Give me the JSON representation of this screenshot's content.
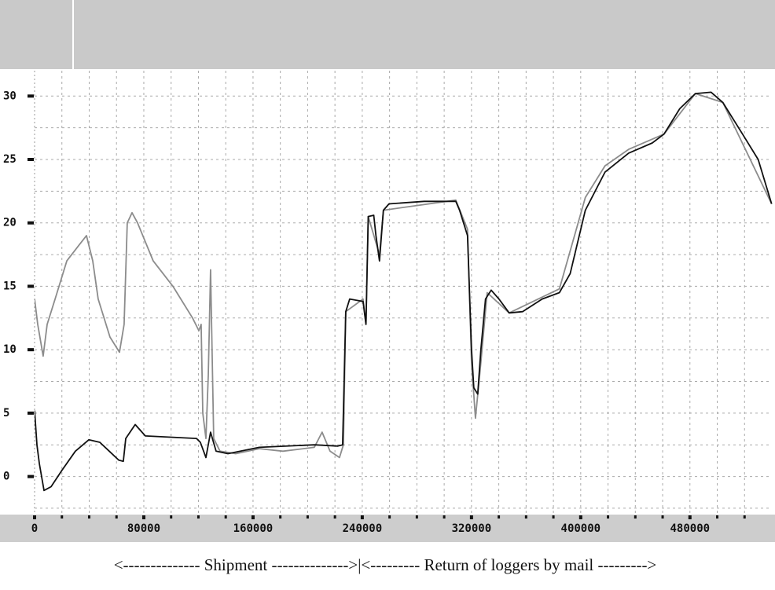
{
  "chart_data": {
    "type": "line",
    "annotation": "<-------------- Shipment -------------->|<--------- Return of loggers by mail --------->",
    "xlim": [
      0,
      540000
    ],
    "ylim": [
      -3,
      32
    ],
    "xticks": [
      0,
      80000,
      160000,
      240000,
      320000,
      400000,
      480000
    ],
    "yticks": [
      0,
      5,
      10,
      15,
      20,
      25,
      30
    ],
    "xgrid": [
      20000,
      40000,
      60000,
      80000,
      100000,
      120000,
      140000,
      160000,
      180000,
      200000,
      220000,
      240000,
      260000,
      280000,
      300000,
      320000,
      340000,
      360000,
      380000,
      400000,
      420000,
      440000,
      460000,
      480000,
      500000,
      520000
    ],
    "ygrid": [
      -2.5,
      0,
      2.5,
      5,
      7.5,
      10,
      12.5,
      15,
      17.5,
      20,
      22.5,
      25,
      27.5,
      30
    ],
    "grid": true,
    "series": [
      {
        "color": "#8c8c8c",
        "x": [
          0,
          2300,
          6300,
          9200,
          15000,
          23600,
          32200,
          38000,
          42600,
          46600,
          55200,
          62200,
          65600,
          67900,
          71400,
          75400,
          86900,
          101300,
          115700,
          120300,
          122000,
          123200,
          125500,
          127200,
          128900,
          131200,
          135800,
          147300,
          164600,
          181900,
          204900,
          210600,
          216400,
          223300,
          226200,
          227900,
          240600,
          242700,
          244400,
          252600,
          255500,
          308500,
          317100,
          320000,
          322900,
          326900,
          331500,
          347600,
          384400,
          403400,
          417800,
          435100,
          461000,
          484000,
          504100,
          539800
        ],
        "values": [
          14,
          12,
          9.5,
          12,
          14,
          17,
          18.2,
          19,
          17,
          14,
          11,
          9.8,
          12,
          20,
          20.8,
          20,
          17,
          15,
          12.5,
          11.5,
          12,
          5,
          3,
          8,
          16.3,
          3,
          2,
          1.8,
          2.2,
          2.0,
          2.3,
          3.5,
          2.0,
          1.5,
          2.5,
          13,
          14,
          12,
          20.5,
          17.5,
          21,
          21.8,
          19.5,
          9,
          4.6,
          9,
          14.5,
          12.9,
          14.8,
          22,
          24.5,
          25.8,
          27,
          30.2,
          29.5,
          21.5
        ]
      },
      {
        "color": "#111111",
        "x": [
          0,
          1700,
          3500,
          6900,
          12100,
          20100,
          29900,
          39700,
          47800,
          54700,
          61600,
          65000,
          66800,
          73700,
          81100,
          118600,
          121400,
          125500,
          128900,
          132900,
          141600,
          164600,
          204900,
          222100,
          225600,
          227900,
          230800,
          240600,
          242700,
          244400,
          248400,
          250000,
          252600,
          255500,
          259600,
          285400,
          308500,
          311300,
          317100,
          320000,
          321700,
          324600,
          326900,
          330300,
          334400,
          340100,
          347600,
          357400,
          371800,
          384400,
          392300,
          403400,
          417800,
          435100,
          452400,
          461000,
          472500,
          484000,
          495500,
          504100,
          518500,
          530000,
          539800
        ],
        "values": [
          5.2,
          2.5,
          1.0,
          -1.1,
          -0.8,
          0.5,
          2.0,
          2.9,
          2.7,
          2.0,
          1.3,
          1.2,
          3.0,
          4.1,
          3.2,
          3.0,
          2.7,
          1.5,
          3.5,
          2.0,
          1.8,
          2.3,
          2.5,
          2.4,
          2.5,
          13.0,
          14.0,
          13.8,
          12.0,
          20.5,
          20.6,
          19.0,
          17.0,
          21.0,
          21.5,
          21.7,
          21.7,
          21.0,
          19.0,
          10.0,
          7.0,
          6.5,
          10.0,
          14.0,
          14.7,
          14.0,
          12.9,
          13.0,
          14.0,
          14.5,
          16.0,
          21.0,
          24.0,
          25.5,
          26.3,
          27.0,
          29.0,
          30.2,
          30.3,
          29.5,
          27.0,
          25.0,
          21.5
        ]
      }
    ]
  }
}
